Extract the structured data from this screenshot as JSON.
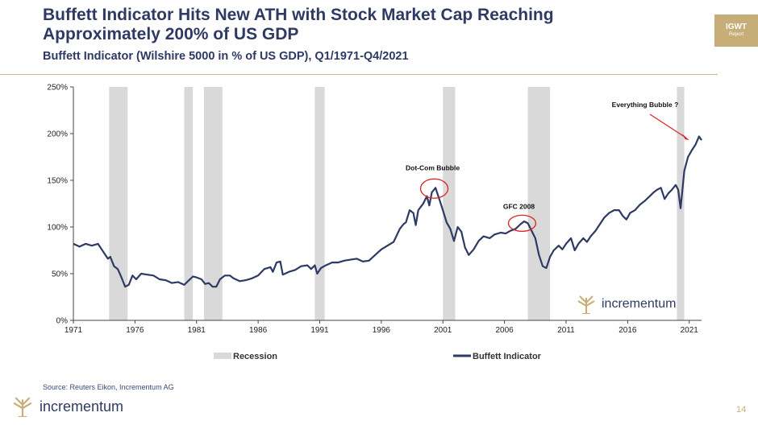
{
  "header": {
    "title": "Buffett Indicator Hits New ATH with Stock Market Cap Reaching Approximately 200% of US GDP",
    "subtitle": "Buffett Indicator (Wilshire 5000 in % of US GDP), Q1/1971-Q4/2021"
  },
  "badge": {
    "line1": "IGWT",
    "line2": "Report"
  },
  "brand": {
    "name": "incrementum",
    "icon": "incrementum-tree-logo"
  },
  "source": "Source: Reuters Eikon, Incrementum AG",
  "page_number": "14",
  "colors": {
    "navy": "#2e3a63",
    "gold": "#c7ae78",
    "recession": "#d9d9d9",
    "annotation": "#e02020"
  },
  "chart_data": {
    "type": "line",
    "title": "Buffett Indicator (Wilshire 5000 in % of US GDP), Q1/1971-Q4/2021",
    "xlabel": "",
    "ylabel": "",
    "xlim": [
      1971,
      2022
    ],
    "ylim": [
      0,
      250
    ],
    "y_ticks": [
      "0%",
      "50%",
      "100%",
      "150%",
      "200%",
      "250%"
    ],
    "y_tick_values": [
      0,
      50,
      100,
      150,
      200,
      250
    ],
    "x_ticks": [
      "1971",
      "1976",
      "1981",
      "1986",
      "1991",
      "1996",
      "2001",
      "2006",
      "2011",
      "2016",
      "2021"
    ],
    "x_tick_values": [
      1971,
      1976,
      1981,
      1986,
      1991,
      1996,
      2001,
      2006,
      2011,
      2016,
      2021
    ],
    "grid": false,
    "legend": {
      "placement": "bottom",
      "entries": [
        "Recession",
        "Buffett Indicator"
      ]
    },
    "recessions": [
      [
        1973.9,
        1975.4
      ],
      [
        1980.0,
        1980.7
      ],
      [
        1981.6,
        1983.1
      ],
      [
        1990.6,
        1991.4
      ],
      [
        2001.0,
        2002.0
      ],
      [
        2007.9,
        2009.7
      ],
      [
        2020.0,
        2020.6
      ]
    ],
    "series": [
      {
        "name": "Buffett Indicator",
        "color": "#2e3a63",
        "points": [
          [
            1971.0,
            82
          ],
          [
            1971.5,
            79
          ],
          [
            1972.0,
            82
          ],
          [
            1972.5,
            80
          ],
          [
            1973.0,
            82
          ],
          [
            1973.5,
            72
          ],
          [
            1973.8,
            66
          ],
          [
            1974.0,
            68
          ],
          [
            1974.3,
            58
          ],
          [
            1974.6,
            55
          ],
          [
            1974.9,
            46
          ],
          [
            1975.2,
            36
          ],
          [
            1975.5,
            38
          ],
          [
            1975.8,
            48
          ],
          [
            1976.1,
            44
          ],
          [
            1976.5,
            50
          ],
          [
            1977.0,
            49
          ],
          [
            1977.5,
            48
          ],
          [
            1978.0,
            44
          ],
          [
            1978.5,
            43
          ],
          [
            1979.0,
            40
          ],
          [
            1979.5,
            41
          ],
          [
            1980.0,
            38
          ],
          [
            1980.3,
            42
          ],
          [
            1980.7,
            47
          ],
          [
            1981.0,
            46
          ],
          [
            1981.4,
            44
          ],
          [
            1981.7,
            39
          ],
          [
            1982.0,
            40
          ],
          [
            1982.3,
            36
          ],
          [
            1982.6,
            36
          ],
          [
            1982.9,
            44
          ],
          [
            1983.3,
            48
          ],
          [
            1983.7,
            48
          ],
          [
            1984.0,
            45
          ],
          [
            1984.5,
            42
          ],
          [
            1985.0,
            43
          ],
          [
            1985.5,
            45
          ],
          [
            1986.0,
            48
          ],
          [
            1986.5,
            55
          ],
          [
            1987.0,
            57
          ],
          [
            1987.2,
            52
          ],
          [
            1987.5,
            62
          ],
          [
            1987.8,
            63
          ],
          [
            1988.0,
            49
          ],
          [
            1988.5,
            52
          ],
          [
            1989.0,
            54
          ],
          [
            1989.5,
            58
          ],
          [
            1990.0,
            59
          ],
          [
            1990.3,
            55
          ],
          [
            1990.6,
            59
          ],
          [
            1990.8,
            50
          ],
          [
            1991.1,
            56
          ],
          [
            1991.5,
            59
          ],
          [
            1992.0,
            62
          ],
          [
            1992.5,
            62
          ],
          [
            1993.0,
            64
          ],
          [
            1993.5,
            65
          ],
          [
            1994.0,
            66
          ],
          [
            1994.5,
            63
          ],
          [
            1995.0,
            64
          ],
          [
            1995.5,
            70
          ],
          [
            1996.0,
            76
          ],
          [
            1996.5,
            80
          ],
          [
            1997.0,
            84
          ],
          [
            1997.5,
            98
          ],
          [
            1997.8,
            103
          ],
          [
            1998.0,
            105
          ],
          [
            1998.3,
            118
          ],
          [
            1998.6,
            115
          ],
          [
            1998.8,
            102
          ],
          [
            1999.0,
            118
          ],
          [
            1999.4,
            125
          ],
          [
            1999.7,
            133
          ],
          [
            1999.9,
            123
          ],
          [
            2000.1,
            137
          ],
          [
            2000.4,
            142
          ],
          [
            2000.7,
            130
          ],
          [
            2001.0,
            118
          ],
          [
            2001.3,
            105
          ],
          [
            2001.6,
            98
          ],
          [
            2001.9,
            85
          ],
          [
            2002.2,
            100
          ],
          [
            2002.5,
            95
          ],
          [
            2002.8,
            78
          ],
          [
            2003.1,
            70
          ],
          [
            2003.5,
            76
          ],
          [
            2003.9,
            85
          ],
          [
            2004.3,
            90
          ],
          [
            2004.8,
            88
          ],
          [
            2005.2,
            92
          ],
          [
            2005.7,
            94
          ],
          [
            2006.1,
            93
          ],
          [
            2006.5,
            96
          ],
          [
            2006.9,
            98
          ],
          [
            2007.3,
            103
          ],
          [
            2007.6,
            106
          ],
          [
            2007.9,
            104
          ],
          [
            2008.2,
            96
          ],
          [
            2008.5,
            88
          ],
          [
            2008.8,
            70
          ],
          [
            2009.1,
            58
          ],
          [
            2009.4,
            56
          ],
          [
            2009.7,
            68
          ],
          [
            2010.0,
            75
          ],
          [
            2010.4,
            80
          ],
          [
            2010.7,
            76
          ],
          [
            2011.0,
            82
          ],
          [
            2011.4,
            88
          ],
          [
            2011.7,
            75
          ],
          [
            2012.0,
            82
          ],
          [
            2012.4,
            88
          ],
          [
            2012.7,
            84
          ],
          [
            2013.0,
            90
          ],
          [
            2013.4,
            96
          ],
          [
            2013.8,
            104
          ],
          [
            2014.1,
            110
          ],
          [
            2014.5,
            115
          ],
          [
            2014.9,
            118
          ],
          [
            2015.3,
            118
          ],
          [
            2015.6,
            112
          ],
          [
            2015.9,
            108
          ],
          [
            2016.2,
            115
          ],
          [
            2016.6,
            118
          ],
          [
            2017.0,
            124
          ],
          [
            2017.4,
            128
          ],
          [
            2017.8,
            133
          ],
          [
            2018.1,
            137
          ],
          [
            2018.4,
            140
          ],
          [
            2018.7,
            142
          ],
          [
            2019.0,
            130
          ],
          [
            2019.3,
            136
          ],
          [
            2019.6,
            140
          ],
          [
            2019.9,
            145
          ],
          [
            2020.1,
            140
          ],
          [
            2020.3,
            120
          ],
          [
            2020.6,
            160
          ],
          [
            2020.9,
            175
          ],
          [
            2021.2,
            182
          ],
          [
            2021.5,
            188
          ],
          [
            2021.8,
            197
          ],
          [
            2022.0,
            193
          ]
        ]
      }
    ],
    "annotations": [
      {
        "label": "Dot-Com Bubble",
        "x": 2000.3,
        "y": 142
      },
      {
        "label": "GFC 2008",
        "x": 2007.3,
        "y": 104
      },
      {
        "label": "Everything Bubble ?",
        "x": 2021.6,
        "y": 197
      }
    ]
  }
}
